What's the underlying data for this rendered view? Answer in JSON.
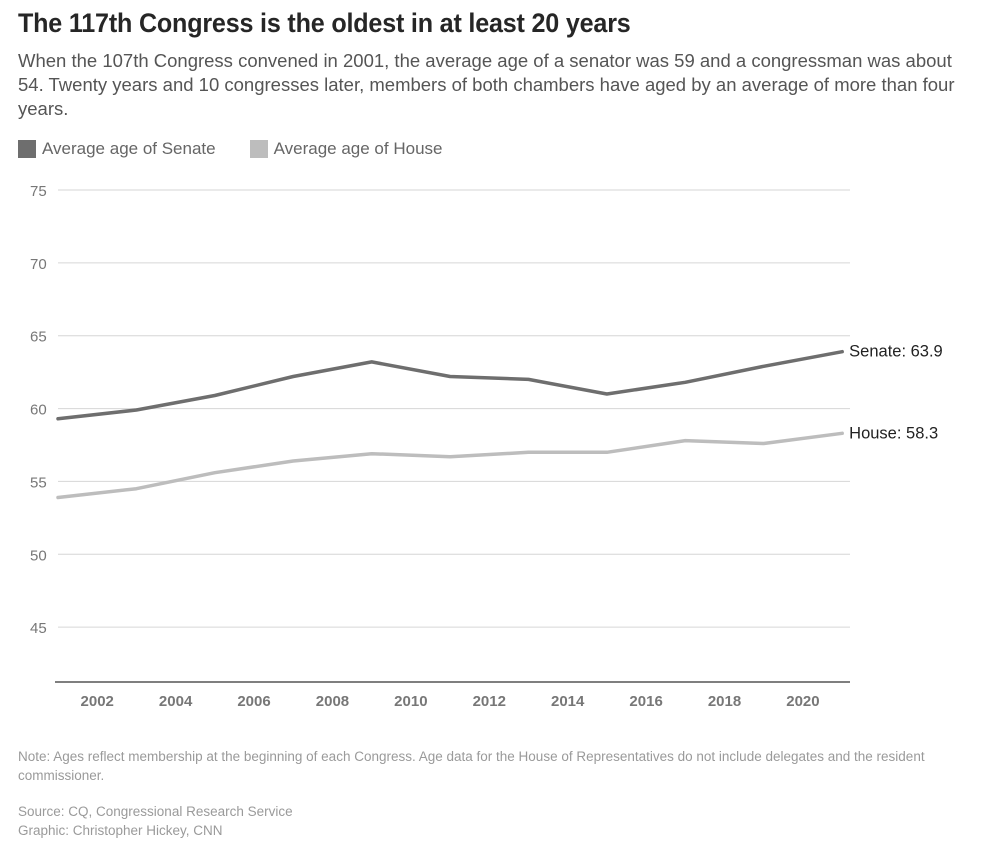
{
  "header": {
    "title": "The 117th Congress is the oldest in at least 20 years",
    "subtitle": "When the 107th Congress convened in 2001, the average age of a senator was 59 and a congressman was about 54. Twenty years and 10 congresses later, members of both chambers have aged by an average of more than four years."
  },
  "footer": {
    "note": "Note: Ages reflect membership at the beginning of each Congress. Age data for the House of Representatives do not include delegates and the resident commissioner.",
    "source": "Source: CQ, Congressional Research Service",
    "credit": "Graphic: Christopher Hickey, CNN"
  },
  "colors": {
    "senate": "#6e6e6e",
    "house": "#bdbdbd",
    "grid": "#d6d6d6",
    "axis": "#555555",
    "tick_label": "#777777"
  },
  "chart_data": {
    "type": "line",
    "x": [
      2001,
      2003,
      2005,
      2007,
      2009,
      2011,
      2013,
      2015,
      2017,
      2019,
      2021
    ],
    "series": [
      {
        "name": "Average age of Senate",
        "end_label": "Senate: 63.9",
        "color": "#6e6e6e",
        "values": [
          59.3,
          59.9,
          60.9,
          62.2,
          63.2,
          62.2,
          62.0,
          61.0,
          61.8,
          62.9,
          63.9
        ]
      },
      {
        "name": "Average age of House",
        "end_label": "House: 58.3",
        "color": "#bdbdbd",
        "values": [
          53.9,
          54.5,
          55.6,
          56.4,
          56.9,
          56.7,
          57.0,
          57.0,
          57.8,
          57.6,
          58.3
        ]
      }
    ],
    "xlim": [
      2001,
      2021.2
    ],
    "ylim": [
      40,
      75
    ],
    "yticks": [
      45,
      50,
      55,
      60,
      65,
      70,
      75
    ],
    "xticks": [
      2002,
      2004,
      2006,
      2008,
      2010,
      2012,
      2014,
      2016,
      2018,
      2020
    ],
    "grid": true,
    "legend_position": "top-left",
    "xlabel": "",
    "ylabel": ""
  }
}
